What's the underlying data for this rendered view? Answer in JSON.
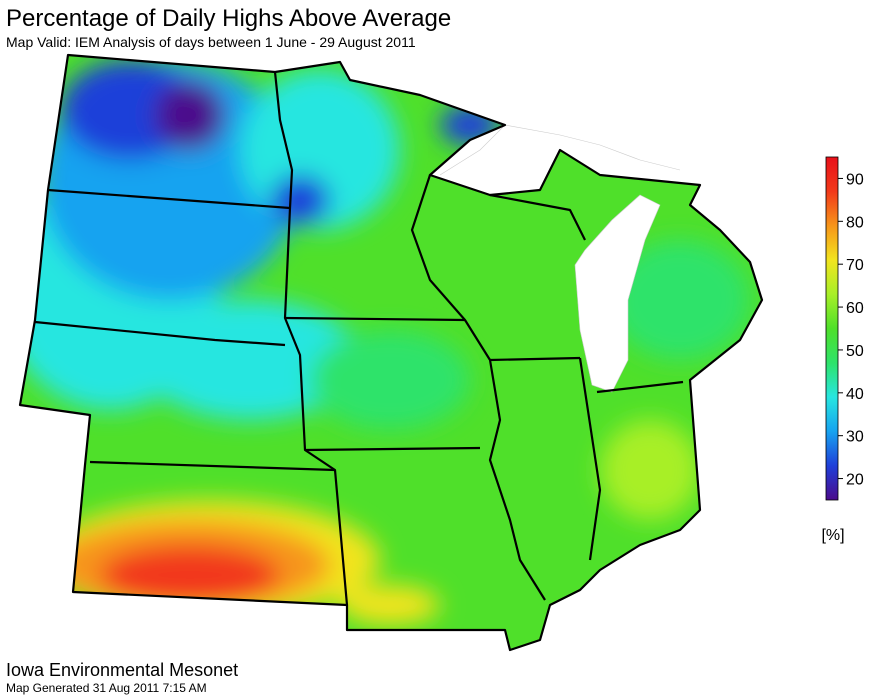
{
  "header": {
    "title": "Percentage of Daily Highs Above Average",
    "subtitle": "Map Valid: IEM Analysis of days between 1 June - 29 August 2011"
  },
  "legend": {
    "range": [
      15,
      95
    ],
    "ticks": [
      20,
      30,
      40,
      50,
      60,
      70,
      80,
      90
    ],
    "unit": "[%]",
    "colors": [
      "#4b0b8c",
      "#1f3fd9",
      "#17a3f0",
      "#27e6e0",
      "#2ee36a",
      "#4fe02a",
      "#a8ef28",
      "#f2e41f",
      "#f7951a",
      "#f2391a",
      "#e8101a"
    ]
  },
  "footer": {
    "org": "Iowa Environmental Mesonet",
    "generated": "Map Generated 31 Aug 2011 7:15 AM"
  }
}
